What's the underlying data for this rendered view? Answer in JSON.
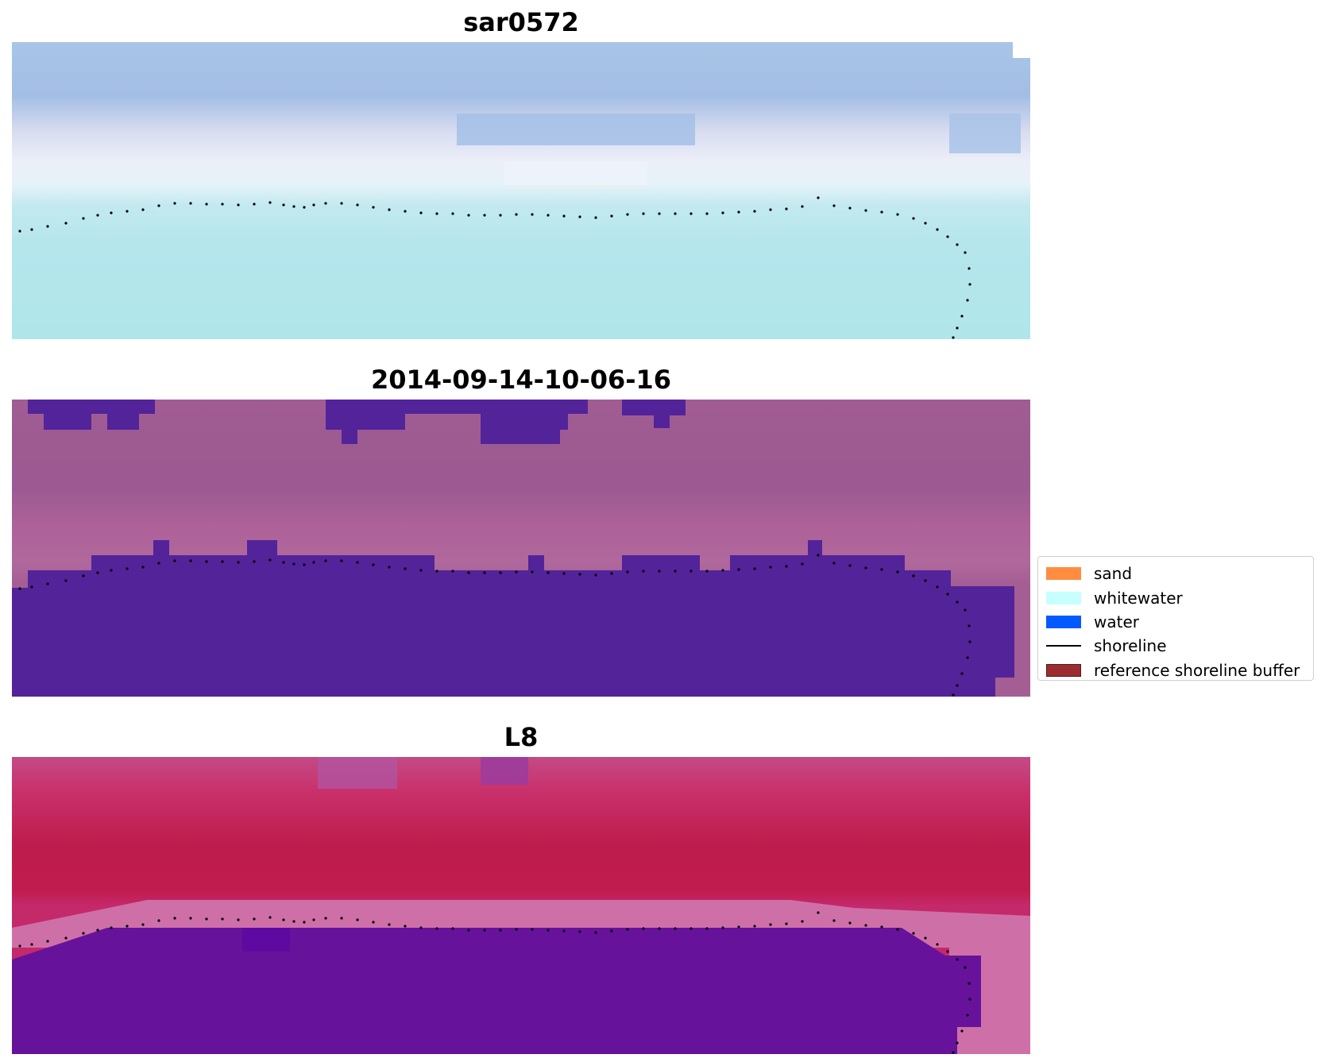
{
  "panels": [
    {
      "title": "sar0572",
      "image": "rgb-satellite-image"
    },
    {
      "title": "2014-09-14-10-06-16",
      "image": "classified-image"
    },
    {
      "title": "L8",
      "image": "mndwi-index-image"
    }
  ],
  "legend": {
    "items": [
      {
        "label": "sand",
        "color": "#ff8c3f",
        "kind": "patch"
      },
      {
        "label": "whitewater",
        "color": "#c7ffff",
        "kind": "patch"
      },
      {
        "label": "water",
        "color": "#005aff",
        "kind": "patch"
      },
      {
        "label": "shoreline",
        "color": "#000000",
        "kind": "line"
      },
      {
        "label": "reference shoreline buffer",
        "color": "#9b2d30",
        "edge": "#5a1517",
        "kind": "patch"
      }
    ]
  },
  "colors": {
    "sky_blue": "#a6c4e6",
    "pale_white": "#eaeef7",
    "light_cyan": "#b2e7ee",
    "mauve": "#a8608f",
    "deep_purple": "#53239a",
    "crimson": "#c01a4f",
    "violet": "#67129b",
    "pink_band": "#d680b3",
    "shoreline_dots": "#000000"
  }
}
